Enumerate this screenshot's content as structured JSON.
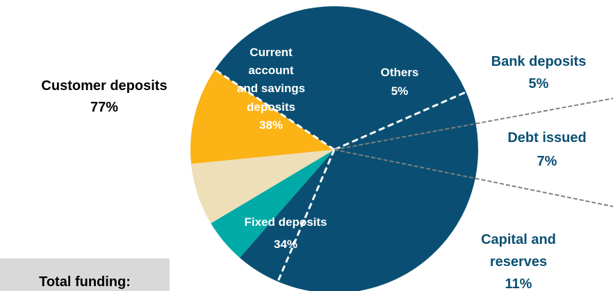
{
  "chart_data": {
    "type": "pie",
    "slices": [
      {
        "key": "current_account_savings",
        "label": [
          "Current",
          "account",
          "and savings",
          "deposits"
        ],
        "value": 38,
        "value_label": "38%",
        "color": "#0a4f73"
      },
      {
        "key": "others",
        "label": [
          "Others"
        ],
        "value": 5,
        "value_label": "5%",
        "color": "#0a4f73"
      },
      {
        "key": "bank_deposits",
        "label": [
          "Bank deposits"
        ],
        "value": 5,
        "value_label": "5%",
        "color": "#00aaa7"
      },
      {
        "key": "debt_issued",
        "label": [
          "Debt issued"
        ],
        "value": 7,
        "value_label": "7%",
        "color": "#efdfb9"
      },
      {
        "key": "capital_reserves",
        "label": [
          "Capital and",
          "reserves"
        ],
        "value": 11,
        "value_label": "11%",
        "color": "#fbb316"
      },
      {
        "key": "fixed_deposits",
        "label": [
          "Fixed deposits"
        ],
        "value": 34,
        "value_label": "34%",
        "color": "#0a4f73"
      }
    ],
    "groups": [
      {
        "label": "Customer deposits",
        "value": 77,
        "value_label": "77%"
      }
    ],
    "colors": {
      "navy": "#0a4f73",
      "teal": "#00aaa7",
      "cream": "#efdfb9",
      "gold": "#fbb316",
      "connector": "#7f7f7f"
    }
  },
  "footer": {
    "total_label": "Total funding:"
  }
}
